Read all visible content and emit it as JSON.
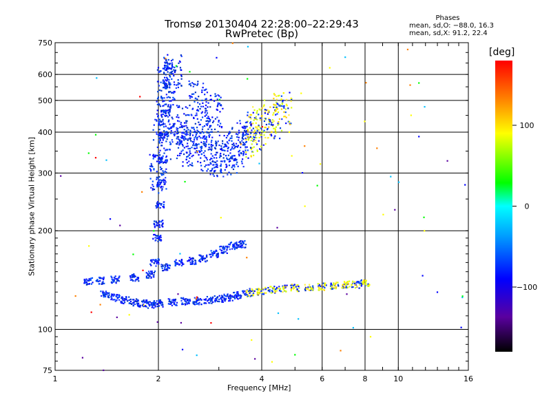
{
  "title_line1": "Tromsø 20130404 22:28:00–22:29:43",
  "title_line2": "RwPretec (Bp)",
  "stats": {
    "heading": "Phases",
    "o_mode": "mean, sd,O: −88.0, 16.3",
    "x_mode": "mean, sd,X:  91.2, 22.4"
  },
  "colorbar": {
    "label": "[deg]",
    "ticks": [
      "100",
      "0",
      "−100"
    ],
    "tick_values": [
      100,
      0,
      -100
    ],
    "range": [
      -180,
      180
    ],
    "colors": [
      "#000000",
      "#5a00a0",
      "#0000ff",
      "#00a0ff",
      "#00ffff",
      "#00ff00",
      "#ffff00",
      "#ff8000",
      "#ff0000"
    ]
  },
  "chart_data": {
    "type": "scatter",
    "title": "Tromsø 20130404 22:28:00–22:29:43 RwPretec (Bp)",
    "xlabel": "Frequency [MHz]",
    "ylabel": "Stationary phase Virtual Height [km]",
    "xscale": "log",
    "yscale": "log",
    "xlim": [
      1,
      16
    ],
    "ylim": [
      75,
      750
    ],
    "x_ticks": [
      "1",
      "2",
      "4",
      "6",
      "8",
      "10",
      "16"
    ],
    "x_tick_values": [
      1,
      2,
      4,
      6,
      8,
      10,
      16
    ],
    "y_ticks": [
      "750",
      "600",
      "500",
      "400",
      "300",
      "200",
      "100",
      "75"
    ],
    "y_tick_values": [
      750,
      600,
      500,
      400,
      300,
      200,
      100,
      75
    ],
    "grid": true,
    "color_by": "phase [deg]",
    "series": [
      {
        "trace": "e-region-trace",
        "points": [
          [
            1.4,
            128
          ],
          [
            1.5,
            125
          ],
          [
            1.6,
            123
          ],
          [
            1.7,
            121
          ],
          [
            1.8,
            120
          ],
          [
            1.9,
            119
          ],
          [
            2.0,
            120
          ],
          [
            2.2,
            121
          ],
          [
            2.4,
            122
          ],
          [
            2.6,
            122
          ],
          [
            2.8,
            123
          ],
          [
            3.0,
            124
          ],
          [
            3.2,
            125
          ],
          [
            3.4,
            127
          ],
          [
            3.6,
            129
          ],
          [
            3.8,
            130
          ],
          [
            4.0,
            131
          ],
          [
            4.3,
            132
          ],
          [
            4.6,
            133
          ],
          [
            5.0,
            134
          ],
          [
            5.5,
            134
          ],
          [
            6.0,
            135
          ],
          [
            6.5,
            136
          ],
          [
            7.0,
            137
          ],
          [
            7.5,
            137
          ],
          [
            8.0,
            138
          ]
        ]
      },
      {
        "trace": "lower-trace",
        "points": [
          [
            1.25,
            140
          ],
          [
            1.35,
            141
          ],
          [
            1.5,
            142
          ],
          [
            1.7,
            144
          ],
          [
            1.9,
            147
          ],
          [
            2.1,
            155
          ],
          [
            2.3,
            160
          ],
          [
            2.5,
            162
          ],
          [
            2.7,
            165
          ],
          [
            2.9,
            170
          ],
          [
            3.1,
            175
          ],
          [
            3.3,
            180
          ],
          [
            3.5,
            182
          ]
        ]
      },
      {
        "trace": "spread-band",
        "points": [
          [
            2.0,
            300
          ],
          [
            2.05,
            380
          ],
          [
            2.1,
            450
          ],
          [
            2.1,
            550
          ],
          [
            2.2,
            600
          ],
          [
            2.3,
            420
          ],
          [
            2.4,
            380
          ],
          [
            2.5,
            360
          ],
          [
            2.6,
            500
          ],
          [
            2.7,
            380
          ],
          [
            2.8,
            350
          ],
          [
            2.9,
            460
          ],
          [
            3.0,
            330
          ],
          [
            3.2,
            340
          ],
          [
            3.4,
            360
          ],
          [
            3.6,
            380
          ],
          [
            3.8,
            400
          ],
          [
            4.0,
            420
          ],
          [
            4.3,
            440
          ],
          [
            4.6,
            460
          ]
        ]
      },
      {
        "trace": "vertical-column",
        "points": [
          [
            1.95,
            160
          ],
          [
            1.98,
            190
          ],
          [
            2.0,
            210
          ],
          [
            2.02,
            240
          ],
          [
            2.04,
            280
          ],
          [
            2.06,
            330
          ],
          [
            2.08,
            390
          ],
          [
            2.1,
            460
          ],
          [
            2.12,
            560
          ],
          [
            2.14,
            640
          ]
        ]
      }
    ]
  }
}
